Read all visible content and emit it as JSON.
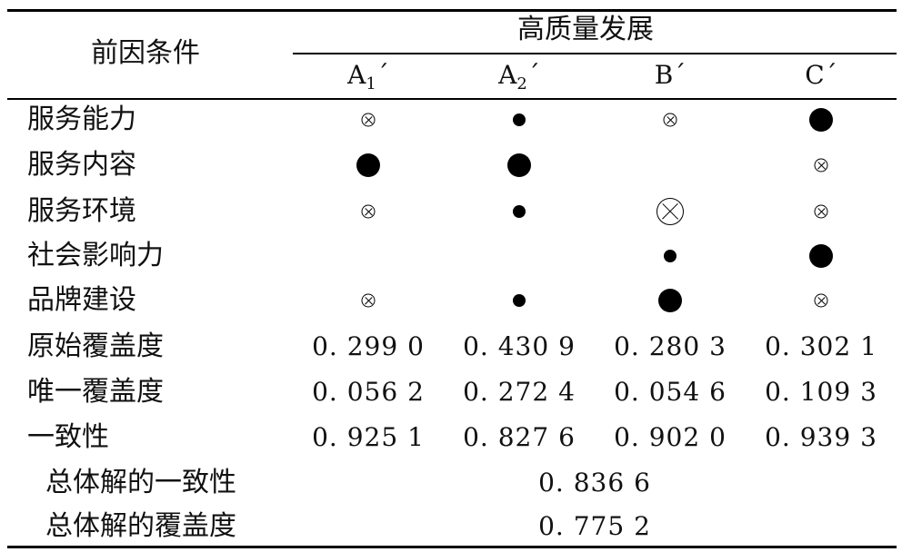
{
  "table": {
    "header_label": "前因条件",
    "group_title": "高质量发展",
    "columns": [
      {
        "name": "A",
        "sub": "1",
        "prime": "´"
      },
      {
        "name": "A",
        "sub": "2",
        "prime": "´"
      },
      {
        "name": "B",
        "sub": "",
        "prime": "´"
      },
      {
        "name": "C",
        "sub": "",
        "prime": "´"
      }
    ],
    "condition_rows": [
      {
        "label": "服务能力",
        "cells": [
          "core-absent-small",
          "core-present-small",
          "core-absent-small",
          "core-present-large"
        ]
      },
      {
        "label": "服务内容",
        "cells": [
          "core-present-large",
          "core-present-large",
          "none",
          "core-absent-small"
        ]
      },
      {
        "label": "服务环境",
        "cells": [
          "core-absent-small",
          "core-present-small",
          "core-absent-large",
          "core-absent-small"
        ]
      },
      {
        "label": "社会影响力",
        "cells": [
          "none",
          "none",
          "core-present-small",
          "core-present-large"
        ]
      },
      {
        "label": "品牌建设",
        "cells": [
          "core-absent-small",
          "core-present-small",
          "core-present-large",
          "core-absent-small"
        ]
      }
    ],
    "metric_rows": [
      {
        "label": "原始覆盖度",
        "values": [
          "0. 299 0",
          "0. 430 9",
          "0. 280 3",
          "0. 302 1"
        ]
      },
      {
        "label": "唯一覆盖度",
        "values": [
          "0. 056 2",
          "0. 272 4",
          "0. 054 6",
          "0. 109 3"
        ]
      },
      {
        "label": "一致性",
        "values": [
          "0. 925 1",
          "0. 827 6",
          "0. 902 0",
          "0. 939 3"
        ]
      }
    ],
    "summary_rows": [
      {
        "label": "总体解的一致性",
        "value": "0. 836 6"
      },
      {
        "label": "总体解的覆盖度",
        "value": "0. 775 2"
      }
    ]
  },
  "symbol_legend": {
    "core-present-large": "filled-circle-large-icon",
    "core-present-small": "filled-circle-small-icon",
    "core-absent-large": "crossed-circle-large-icon",
    "core-absent-small": "crossed-circle-small-icon",
    "none": ""
  }
}
